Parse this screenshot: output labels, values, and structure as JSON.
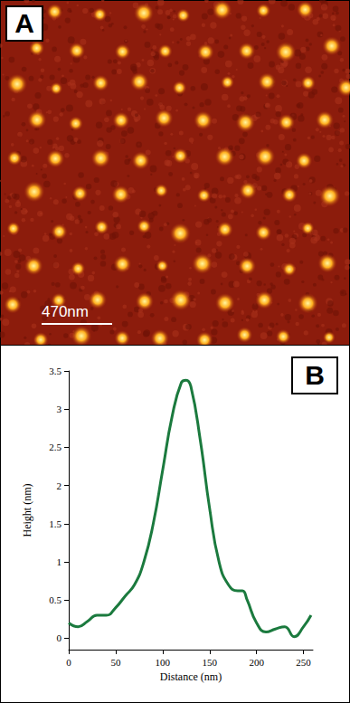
{
  "chart_data": {
    "type": "line",
    "x_label": "Distance (nm)",
    "y_label": "Height (nm)",
    "x": [
      0,
      10,
      20,
      30,
      40,
      50,
      60,
      70,
      80,
      90,
      100,
      110,
      120,
      125,
      130,
      140,
      150,
      160,
      170,
      180,
      185,
      190,
      200,
      210,
      220,
      230,
      240,
      250,
      258
    ],
    "values": [
      0.2,
      0.15,
      0.22,
      0.3,
      0.3,
      0.4,
      0.55,
      0.7,
      1.0,
      1.5,
      2.2,
      2.9,
      3.35,
      3.38,
      3.3,
      2.6,
      1.7,
      1.0,
      0.7,
      0.62,
      0.62,
      0.5,
      0.2,
      0.08,
      0.12,
      0.15,
      0.02,
      0.15,
      0.3
    ],
    "color": "#1b7a3e",
    "xlim": [
      0,
      260
    ],
    "xticks": [
      0,
      50,
      100,
      150,
      200,
      250
    ],
    "ylim": [
      -0.15,
      3.5
    ],
    "yticks": [
      0,
      0.5,
      1,
      1.5,
      2,
      2.5,
      3,
      3.5
    ],
    "grid": false
  },
  "panels": {
    "a": {
      "label": "A",
      "scale_bar": "470nm"
    },
    "b": {
      "label": "B"
    }
  }
}
